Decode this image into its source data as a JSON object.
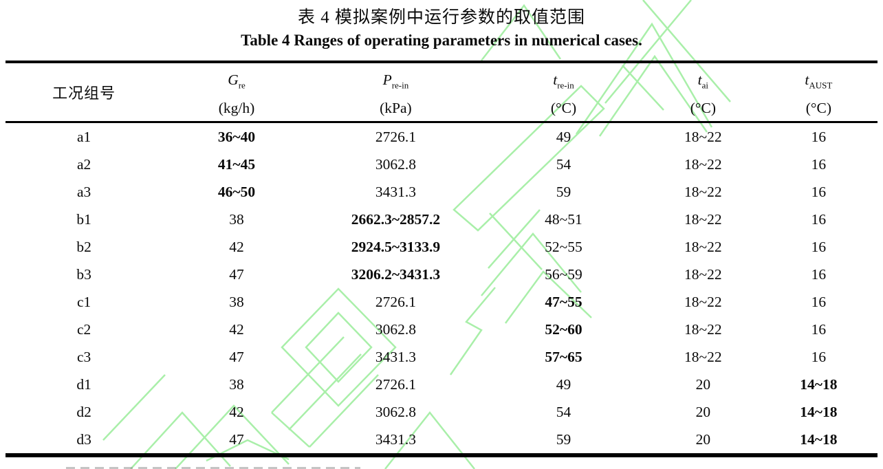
{
  "caption": {
    "zh": "表 4 模拟案例中运行参数的取值范围",
    "en": "Table 4 Ranges of operating parameters in numerical cases."
  },
  "watermark_color": "#a9efa9",
  "table": {
    "row_header_label": "工况组号",
    "columns": [
      {
        "symbol": "G",
        "subscript": "re",
        "unit": "(kg/h)"
      },
      {
        "symbol": "P",
        "subscript": "re-in",
        "unit": "(kPa)"
      },
      {
        "symbol": "t",
        "subscript": "re-in",
        "unit": "(°C)"
      },
      {
        "symbol": "t",
        "subscript": "ai",
        "unit": "(°C)"
      },
      {
        "symbol": "t",
        "subscript": "AUST",
        "unit": "(°C)"
      }
    ],
    "rows": [
      {
        "case": "a1",
        "cells": [
          [
            "36~40",
            1
          ],
          [
            "2726.1",
            0
          ],
          [
            "49",
            0
          ],
          [
            "18~22",
            0
          ],
          [
            "16",
            0
          ]
        ]
      },
      {
        "case": "a2",
        "cells": [
          [
            "41~45",
            1
          ],
          [
            "3062.8",
            0
          ],
          [
            "54",
            0
          ],
          [
            "18~22",
            0
          ],
          [
            "16",
            0
          ]
        ]
      },
      {
        "case": "a3",
        "cells": [
          [
            "46~50",
            1
          ],
          [
            "3431.3",
            0
          ],
          [
            "59",
            0
          ],
          [
            "18~22",
            0
          ],
          [
            "16",
            0
          ]
        ]
      },
      {
        "case": "b1",
        "cells": [
          [
            "38",
            0
          ],
          [
            "2662.3~2857.2",
            1
          ],
          [
            "48~51",
            0
          ],
          [
            "18~22",
            0
          ],
          [
            "16",
            0
          ]
        ]
      },
      {
        "case": "b2",
        "cells": [
          [
            "42",
            0
          ],
          [
            "2924.5~3133.9",
            1
          ],
          [
            "52~55",
            0
          ],
          [
            "18~22",
            0
          ],
          [
            "16",
            0
          ]
        ]
      },
      {
        "case": "b3",
        "cells": [
          [
            "47",
            0
          ],
          [
            "3206.2~3431.3",
            1
          ],
          [
            "56~59",
            0
          ],
          [
            "18~22",
            0
          ],
          [
            "16",
            0
          ]
        ]
      },
      {
        "case": "c1",
        "cells": [
          [
            "38",
            0
          ],
          [
            "2726.1",
            0
          ],
          [
            "47~55",
            1
          ],
          [
            "18~22",
            0
          ],
          [
            "16",
            0
          ]
        ]
      },
      {
        "case": "c2",
        "cells": [
          [
            "42",
            0
          ],
          [
            "3062.8",
            0
          ],
          [
            "52~60",
            1
          ],
          [
            "18~22",
            0
          ],
          [
            "16",
            0
          ]
        ]
      },
      {
        "case": "c3",
        "cells": [
          [
            "47",
            0
          ],
          [
            "3431.3",
            0
          ],
          [
            "57~65",
            1
          ],
          [
            "18~22",
            0
          ],
          [
            "16",
            0
          ]
        ]
      },
      {
        "case": "d1",
        "cells": [
          [
            "38",
            0
          ],
          [
            "2726.1",
            0
          ],
          [
            "49",
            0
          ],
          [
            "20",
            0
          ],
          [
            "14~18",
            1
          ]
        ]
      },
      {
        "case": "d2",
        "cells": [
          [
            "42",
            0
          ],
          [
            "3062.8",
            0
          ],
          [
            "54",
            0
          ],
          [
            "20",
            0
          ],
          [
            "14~18",
            1
          ]
        ]
      },
      {
        "case": "d3",
        "cells": [
          [
            "47",
            0
          ],
          [
            "3431.3",
            0
          ],
          [
            "59",
            0
          ],
          [
            "20",
            0
          ],
          [
            "14~18",
            1
          ]
        ]
      }
    ]
  }
}
